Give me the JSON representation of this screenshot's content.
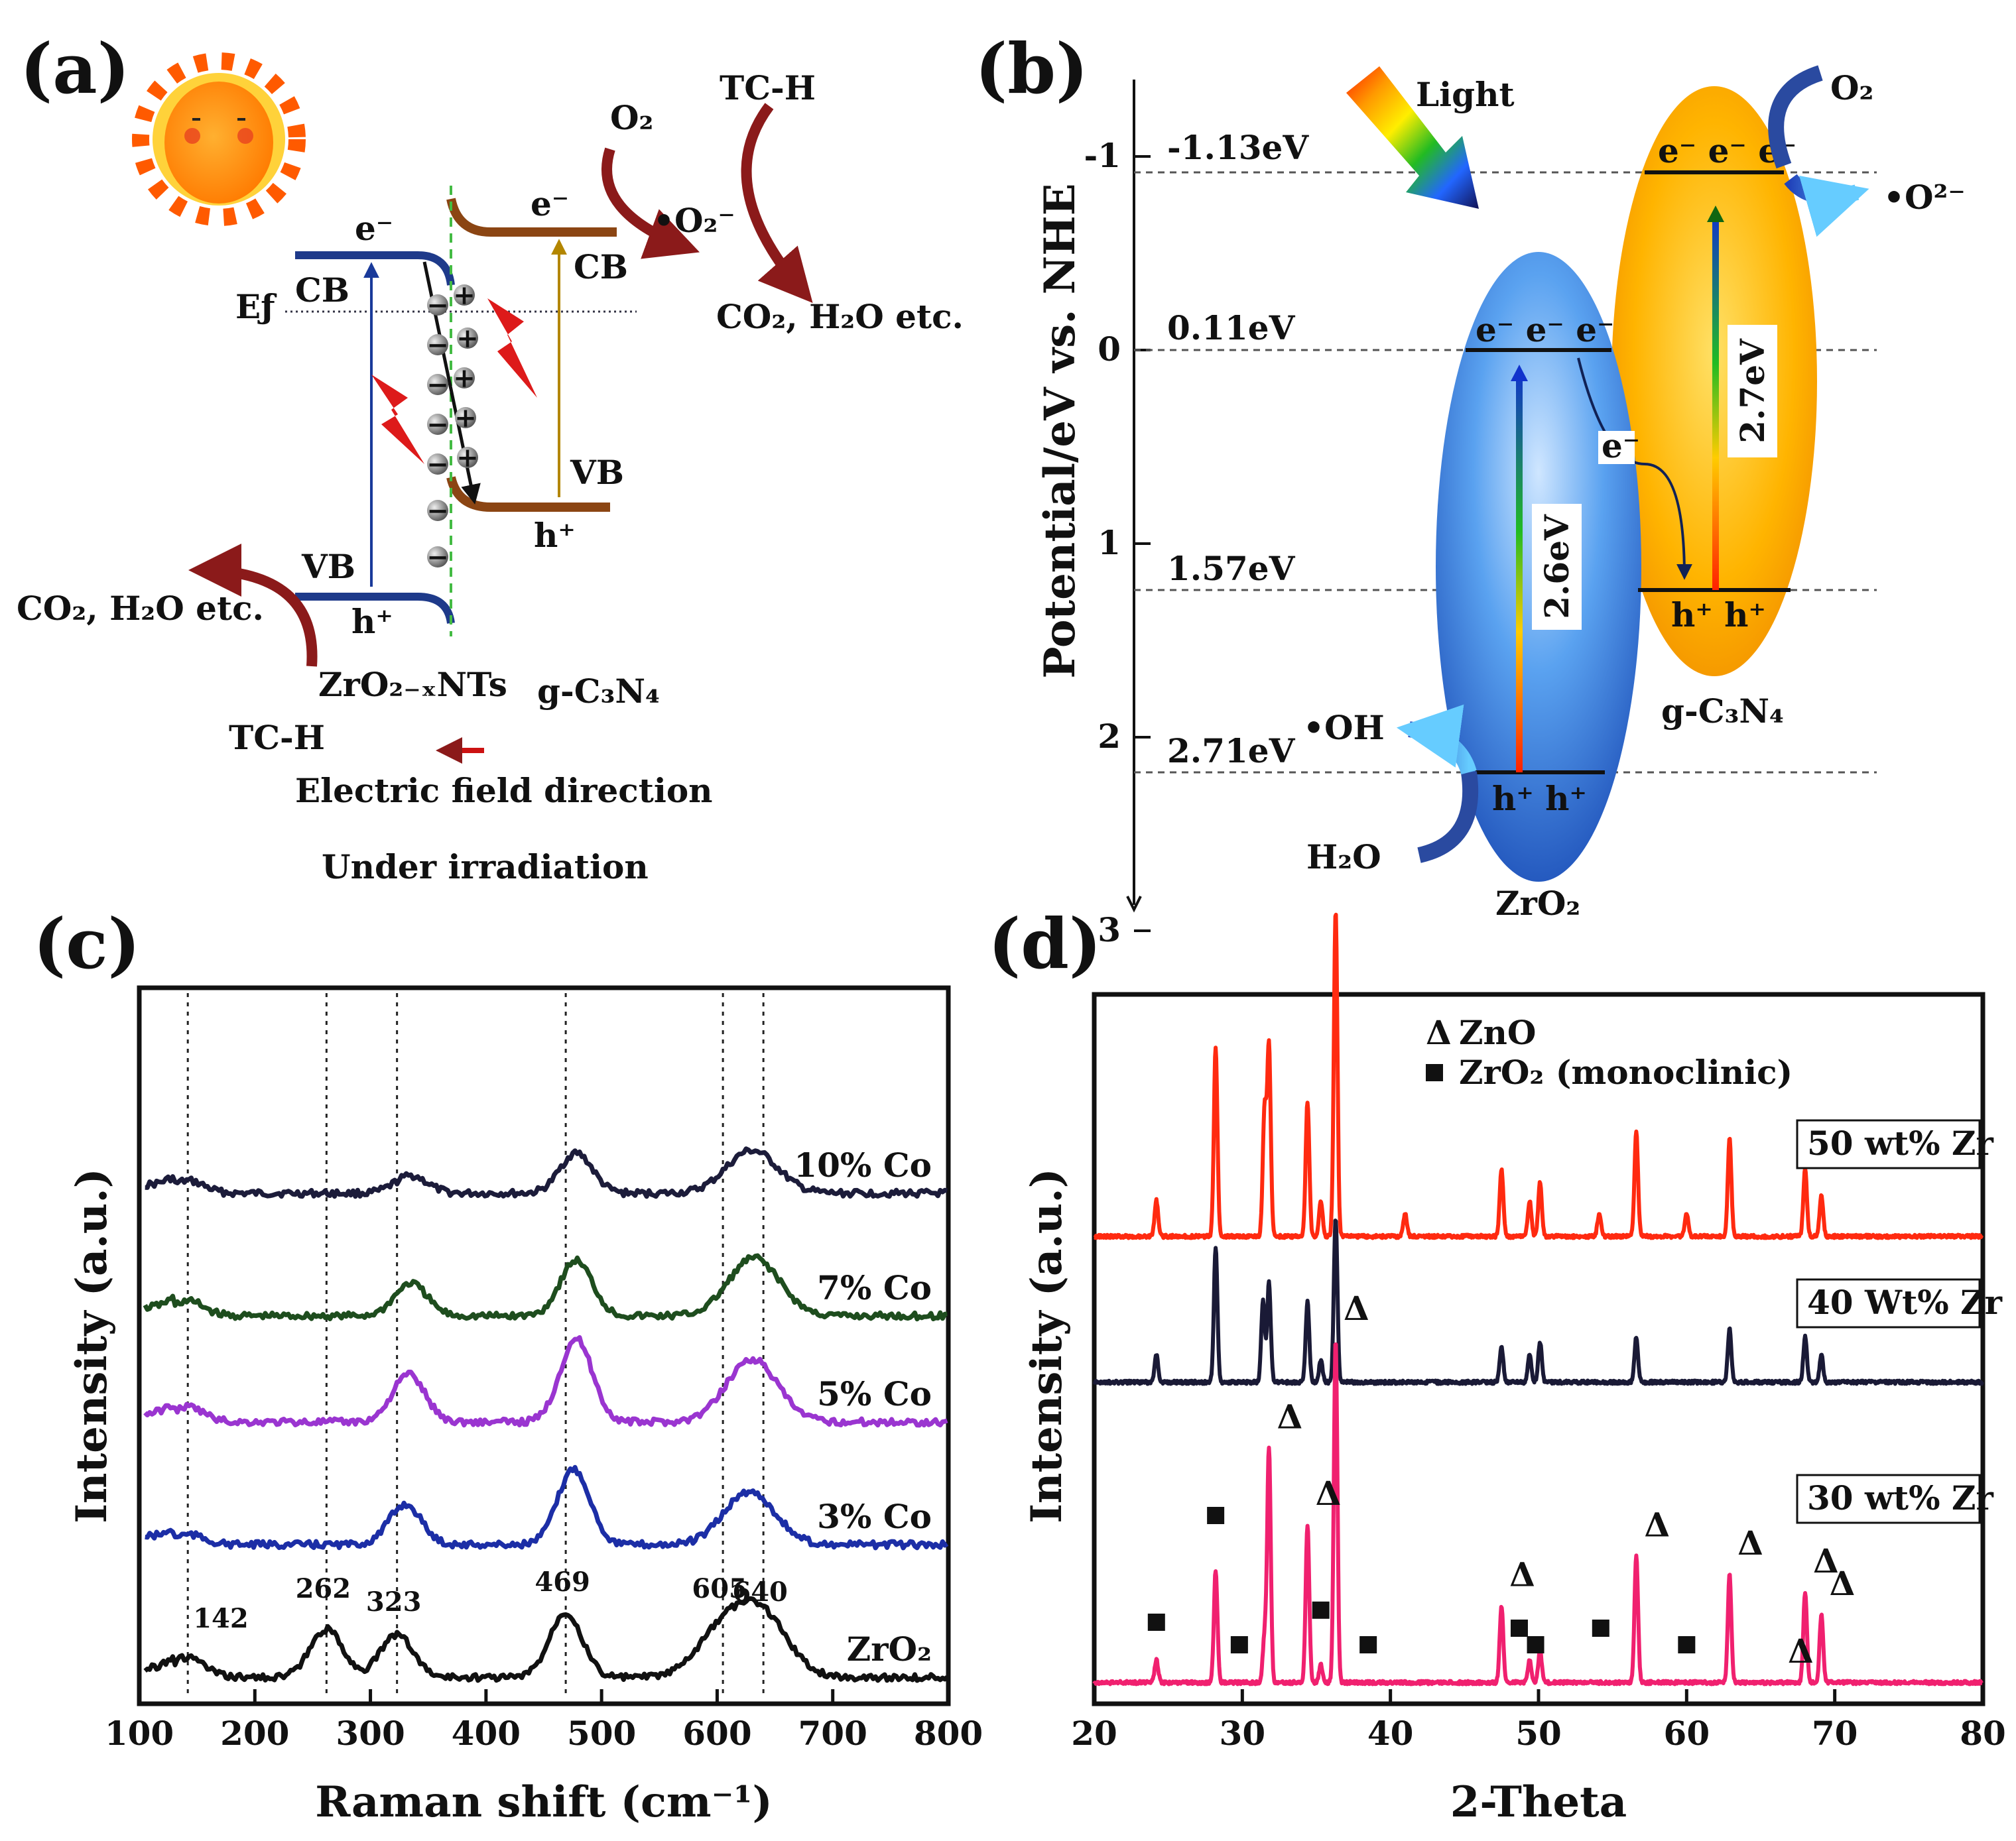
{
  "panels": {
    "a": {
      "label": "(a)",
      "e_left": "e⁻",
      "e_right": "e⁻",
      "cb_left": "CB",
      "cb_right": "CB",
      "vb_left": "VB",
      "vb_right": "VB",
      "ef": "Eƒ",
      "h_left": "h⁺",
      "h_right": "h⁺",
      "o2": "O₂",
      "superoxide": "•O₂⁻",
      "tch_top": "TC-H",
      "products_right": "CO₂, H₂O etc.",
      "products_left": "CO₂, H₂O etc.",
      "mat_left": "ZrO₂₋ₓNTs",
      "mat_right": "g-C₃N₄",
      "tch_bottom": "TC-H",
      "field": "Electric field direction",
      "irradiation": "Under irradiation",
      "plus": "+",
      "minus": "−"
    },
    "b": {
      "label": "(b)",
      "light": "Light",
      "ylabel": "Potential/eV vs. NHE",
      "yticks": [
        "-1",
        "0",
        "1",
        "2",
        "3"
      ],
      "lv1": "-1.13eV",
      "lv2": "0.11eV",
      "lv3": "1.57eV",
      "lv4": "2.71eV",
      "o2": "O₂",
      "o2minus": "•O²⁻",
      "gcn_e": "e⁻ e⁻ e⁻",
      "gcn_gap": "2.7eV",
      "gcn_h": "h⁺ h⁺",
      "gcn_name": "g-C₃N₄",
      "zr_e": "e⁻ e⁻ e⁻",
      "transfer_e": "e⁻",
      "zr_gap": "2.6eV",
      "zr_h": "h⁺ h⁺",
      "zr_name": "ZrO₂",
      "oh": "•OH",
      "h2o": "H₂O"
    },
    "c": {
      "label": "(c)"
    },
    "d": {
      "label": "(d)"
    }
  },
  "chart_data": [
    {
      "panel": "c",
      "type": "line",
      "xlabel": "Raman shift (cm⁻¹)",
      "ylabel": "Intensity (a.u.)",
      "xlim": [
        100,
        800
      ],
      "xticks": [
        100,
        200,
        300,
        400,
        500,
        600,
        700,
        800
      ],
      "peak_markers": [
        142,
        262,
        323,
        469,
        605,
        640
      ],
      "peak_labels": [
        "142",
        "262",
        "323",
        "469",
        "605",
        "640"
      ],
      "series": [
        {
          "name": "10% Co",
          "color": "#1c1c3a",
          "peaks": [
            [
              142,
              0.5
            ],
            [
              335,
              0.7
            ],
            [
              478,
              1.6
            ],
            [
              630,
              1.7
            ]
          ]
        },
        {
          "name": "7% Co",
          "color": "#1e4d1e",
          "peaks": [
            [
              142,
              0.6
            ],
            [
              335,
              1.3
            ],
            [
              478,
              2.2
            ],
            [
              632,
              2.3
            ]
          ]
        },
        {
          "name": "5% Co",
          "color": "#9a35d0",
          "peaks": [
            [
              142,
              0.6
            ],
            [
              333,
              1.9
            ],
            [
              478,
              3.3
            ],
            [
              630,
              2.5
            ]
          ]
        },
        {
          "name": "3% Co",
          "color": "#1c2ea6",
          "peaks": [
            [
              142,
              0.4
            ],
            [
              330,
              1.6
            ],
            [
              476,
              3.0
            ],
            [
              628,
              2.1
            ]
          ]
        },
        {
          "name": "ZrO₂",
          "color": "#111111",
          "peaks": [
            [
              142,
              0.8
            ],
            [
              262,
              1.9
            ],
            [
              323,
              1.7
            ],
            [
              469,
              2.6
            ],
            [
              605,
              1.8
            ],
            [
              640,
              2.3
            ]
          ]
        }
      ]
    },
    {
      "panel": "d",
      "type": "line",
      "xlabel": "2-Theta",
      "ylabel": "Intensity (a.u.)",
      "xlim": [
        20,
        80
      ],
      "xticks": [
        20,
        30,
        40,
        50,
        60,
        70,
        80
      ],
      "legend": [
        "ZnO",
        "ZrO₂ (monoclinic)"
      ],
      "series": [
        {
          "name": "50 wt% Zr",
          "color": "#ff2a10",
          "peaks": [
            [
              24.2,
              0.08
            ],
            [
              28.2,
              0.42
            ],
            [
              31.5,
              0.28
            ],
            [
              31.8,
              0.42
            ],
            [
              34.4,
              0.3
            ],
            [
              35.3,
              0.08
            ],
            [
              36.3,
              0.72
            ],
            [
              41.0,
              0.05
            ],
            [
              47.5,
              0.15
            ],
            [
              49.4,
              0.08
            ],
            [
              50.1,
              0.12
            ],
            [
              54.1,
              0.05
            ],
            [
              56.6,
              0.23
            ],
            [
              60.0,
              0.05
            ],
            [
              62.9,
              0.22
            ],
            [
              68.0,
              0.15
            ],
            [
              69.1,
              0.09
            ]
          ]
        },
        {
          "name": "40 Wt% Zr",
          "color": "#1a1a36",
          "peaks": [
            [
              24.2,
              0.06
            ],
            [
              28.2,
              0.3
            ],
            [
              31.4,
              0.18
            ],
            [
              31.8,
              0.22
            ],
            [
              34.4,
              0.18
            ],
            [
              35.3,
              0.05
            ],
            [
              36.3,
              0.36
            ],
            [
              47.5,
              0.08
            ],
            [
              49.4,
              0.06
            ],
            [
              50.1,
              0.09
            ],
            [
              56.6,
              0.1
            ],
            [
              62.9,
              0.12
            ],
            [
              68.0,
              0.1
            ],
            [
              69.1,
              0.06
            ]
          ]
        },
        {
          "name": "30 wt% Zr",
          "color": "#f0206f",
          "peaks": [
            [
              24.2,
              0.05
            ],
            [
              28.2,
              0.25
            ],
            [
              31.5,
              0.1
            ],
            [
              31.8,
              0.52
            ],
            [
              34.4,
              0.35
            ],
            [
              35.3,
              0.04
            ],
            [
              36.3,
              0.76
            ],
            [
              47.5,
              0.17
            ],
            [
              49.4,
              0.05
            ],
            [
              50.1,
              0.07
            ],
            [
              56.6,
              0.28
            ],
            [
              62.9,
              0.24
            ],
            [
              68.0,
              0.2
            ],
            [
              69.1,
              0.15
            ]
          ]
        }
      ],
      "zno_markers": [
        31.8,
        34.4,
        36.3,
        47.5,
        56.6,
        62.9,
        66.3,
        68.0,
        69.1
      ],
      "zro2_markers": [
        24.2,
        28.2,
        29.8,
        35.3,
        38.5,
        48.7,
        49.8,
        54.2,
        60.0
      ]
    }
  ]
}
